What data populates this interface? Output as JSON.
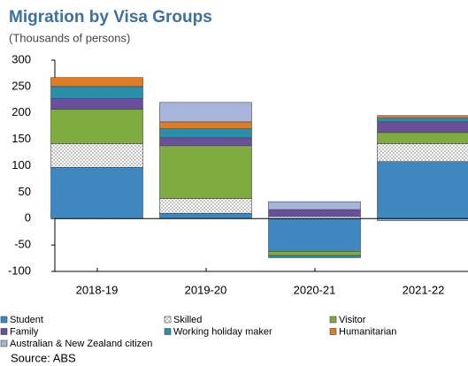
{
  "chart_data": {
    "type": "stacked_bar",
    "title": "Migration by Visa Groups",
    "subtitle": "(Thousands of persons)",
    "source": "Source: ABS",
    "categories": [
      "2018-19",
      "2019-20",
      "2020-21",
      "2021-22"
    ],
    "series": [
      {
        "name": "Student",
        "color": "#3f87c0",
        "values": [
          97,
          10,
          -62,
          108
        ]
      },
      {
        "name": "Skilled",
        "color": "#9a9a9a",
        "values": [
          45,
          28,
          4,
          34
        ]
      },
      {
        "name": "Visitor",
        "color": "#7fac3f",
        "values": [
          65,
          100,
          -8,
          21
        ]
      },
      {
        "name": "Family",
        "color": "#6a4f9c",
        "values": [
          20,
          15,
          13,
          20
        ]
      },
      {
        "name": "Working holiday maker",
        "color": "#2a8fa9",
        "values": [
          23,
          17,
          -4,
          7
        ]
      },
      {
        "name": "Humanitarian",
        "color": "#e07b2a",
        "values": [
          17,
          13,
          0,
          5
        ]
      },
      {
        "name": "Australian & New Zealand citizen",
        "color": "#a7b5da",
        "values": [
          0,
          37,
          15,
          -4
        ]
      }
    ],
    "ylim": [
      -100,
      300
    ],
    "yticks": [
      -100,
      -50,
      0,
      50,
      100,
      150,
      200,
      250,
      300
    ]
  }
}
